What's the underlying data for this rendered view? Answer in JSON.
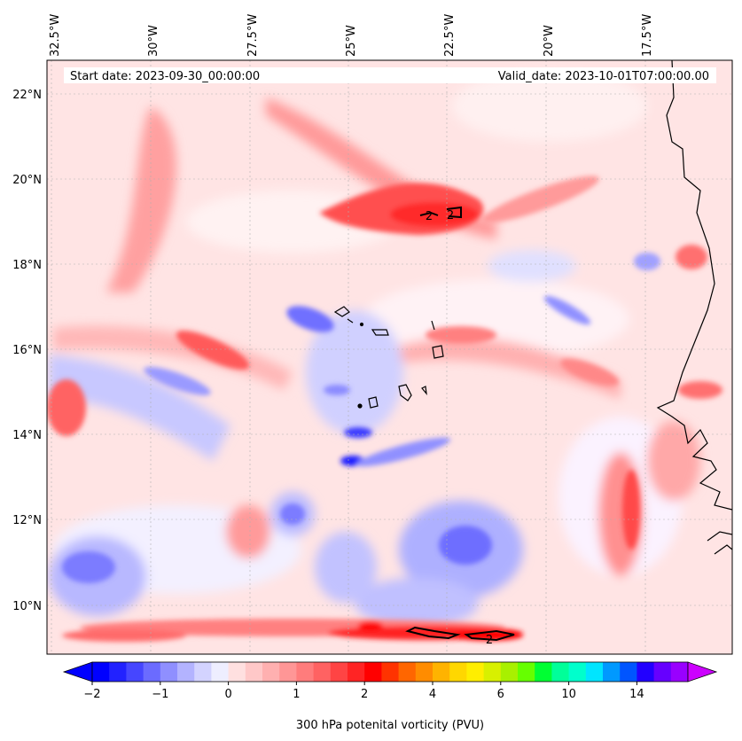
{
  "header": {
    "start_date": "Start date: 2023-09-30_00:00:00",
    "valid_date": "Valid_date: 2023-10-01T07:00:00.00"
  },
  "longitude_labels": [
    "32.5°W",
    "30°W",
    "27.5°W",
    "25°W",
    "22.5°W",
    "20°W",
    "17.5°W"
  ],
  "latitude_labels": [
    "22°N",
    "20°N",
    "18°N",
    "16°N",
    "14°N",
    "12°N",
    "10°N"
  ],
  "colorbar": {
    "title": "300 hPa potenital vorticity (PVU)",
    "tick_labels": [
      "−2",
      "−1",
      "0",
      "1",
      "2",
      "4",
      "6",
      "10",
      "14"
    ],
    "colors": [
      "#0000ff",
      "#2222ff",
      "#4646ff",
      "#6b6bff",
      "#8f8fff",
      "#b3b3ff",
      "#d3d3ff",
      "#eeeeff",
      "#ffe0e0",
      "#ffc8c8",
      "#ffb0b0",
      "#ff9696",
      "#ff7c7c",
      "#ff6262",
      "#ff4444",
      "#ff2424",
      "#ff0000",
      "#ff3300",
      "#ff6600",
      "#ff8c00",
      "#ffb300",
      "#ffd700",
      "#ffee00",
      "#d8f000",
      "#a8f000",
      "#66ff00",
      "#00ff33",
      "#00ff99",
      "#00ffcc",
      "#00e5ff",
      "#0099ff",
      "#0055ff",
      "#2200ff",
      "#6600ff",
      "#9900ff"
    ],
    "extend_low_color": "#0000ff",
    "extend_high_color": "#cc00ff"
  },
  "contour_labels": [
    "2",
    "2",
    "2"
  ]
}
